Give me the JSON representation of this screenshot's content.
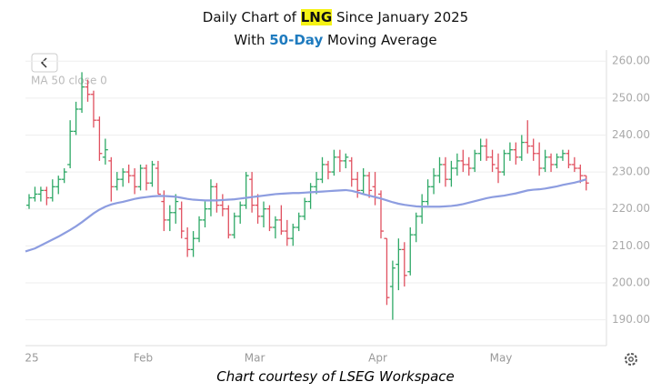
{
  "chart_data": {
    "type": "ohlc",
    "title": [
      "Daily Chart of",
      "LNG",
      "Since January 2025"
    ],
    "subtitle": [
      "With",
      "50-Day",
      "Moving Average"
    ],
    "source": "Chart courtesy of LSEG Workspace",
    "categories": [
      "25",
      null,
      null,
      null,
      null,
      null,
      null,
      null,
      null,
      null,
      null,
      null,
      null,
      null,
      null,
      null,
      null,
      null,
      null,
      "Feb",
      null,
      null,
      null,
      null,
      null,
      null,
      null,
      null,
      null,
      null,
      null,
      null,
      null,
      null,
      null,
      null,
      null,
      null,
      "Mar",
      null,
      null,
      null,
      null,
      null,
      null,
      null,
      null,
      null,
      null,
      null,
      null,
      null,
      null,
      null,
      null,
      null,
      null,
      null,
      null,
      "Apr",
      null,
      null,
      null,
      null,
      null,
      null,
      null,
      null,
      null,
      null,
      null,
      null,
      null,
      null,
      null,
      null,
      null,
      null,
      null,
      null,
      "May",
      null,
      null,
      null,
      null,
      null,
      null,
      null,
      null,
      null,
      null,
      null,
      null,
      null,
      null,
      null
    ],
    "open": [
      221,
      223,
      224,
      225,
      223,
      226,
      228,
      232,
      241,
      247,
      253,
      251,
      244,
      234,
      233,
      226,
      228,
      230,
      229,
      226,
      231,
      227,
      231,
      222,
      217,
      219,
      220,
      212,
      209,
      212,
      217,
      220,
      226,
      221,
      220,
      213,
      218,
      221,
      228,
      221,
      218,
      220,
      215,
      217,
      214,
      212,
      215,
      218,
      222,
      226,
      228,
      232,
      230,
      234,
      233,
      233,
      228,
      225,
      229,
      226,
      224,
      212,
      199,
      205,
      209,
      203,
      213,
      218,
      222,
      226,
      229,
      232,
      228,
      231,
      233,
      232,
      231,
      235,
      237,
      234,
      231,
      230,
      235,
      236,
      234,
      238,
      237,
      235,
      231,
      234,
      232,
      234,
      235,
      232,
      231,
      229
    ],
    "high": [
      224,
      226,
      226,
      226,
      228,
      229,
      231,
      244,
      249,
      257,
      255,
      252,
      245,
      239,
      234,
      230,
      231,
      232,
      231,
      232,
      232,
      233,
      233,
      225,
      221,
      224,
      222,
      215,
      214,
      218,
      222,
      228,
      227,
      224,
      221,
      219,
      222,
      230,
      230,
      224,
      222,
      221,
      218,
      221,
      217,
      216,
      219,
      223,
      227,
      230,
      234,
      233,
      236,
      236,
      235,
      234,
      230,
      231,
      230,
      230,
      225,
      212,
      206,
      212,
      211,
      215,
      219,
      224,
      228,
      231,
      234,
      234,
      233,
      235,
      236,
      234,
      236,
      239,
      239,
      236,
      235,
      236,
      238,
      238,
      240,
      244,
      239,
      238,
      236,
      235,
      235,
      236,
      236,
      234,
      232,
      229
    ],
    "low": [
      220,
      222,
      222,
      221,
      222,
      224,
      227,
      231,
      240,
      246,
      249,
      242,
      233,
      232,
      222,
      225,
      226,
      227,
      224,
      225,
      225,
      226,
      224,
      214,
      214,
      216,
      212,
      207,
      207,
      211,
      215,
      218,
      219,
      218,
      212,
      212,
      216,
      220,
      219,
      216,
      215,
      214,
      212,
      213,
      210,
      210,
      214,
      217,
      220,
      224,
      227,
      228,
      229,
      230,
      231,
      226,
      223,
      224,
      223,
      221,
      212,
      194,
      190,
      198,
      199,
      202,
      211,
      216,
      221,
      224,
      227,
      226,
      226,
      229,
      230,
      229,
      230,
      233,
      233,
      230,
      227,
      229,
      233,
      232,
      233,
      235,
      233,
      229,
      230,
      230,
      231,
      233,
      231,
      230,
      227,
      225
    ],
    "close": [
      223,
      224,
      225,
      223,
      226,
      228,
      230,
      241,
      247,
      253,
      251,
      244,
      235,
      236,
      226,
      228,
      230,
      229,
      226,
      231,
      227,
      232,
      224,
      217,
      219,
      222,
      214,
      209,
      212,
      217,
      220,
      226,
      221,
      220,
      213,
      218,
      221,
      229,
      221,
      218,
      220,
      215,
      217,
      214,
      212,
      215,
      218,
      222,
      226,
      228,
      232,
      230,
      234,
      233,
      234,
      228,
      225,
      229,
      225,
      223,
      214,
      196,
      204,
      209,
      202,
      213,
      218,
      222,
      226,
      229,
      232,
      228,
      231,
      233,
      232,
      231,
      235,
      237,
      234,
      232,
      230,
      235,
      236,
      234,
      238,
      237,
      235,
      231,
      234,
      232,
      234,
      235,
      232,
      231,
      229,
      227
    ],
    "up_color": "#2ea866",
    "down_color": "#e0505f",
    "series": [
      {
        "name": "MA 50 close 0",
        "color": "#8d9de0",
        "values": [
          208.5,
          209.3,
          210.1,
          210.9,
          211.7,
          212.5,
          213.4,
          214.3,
          215.3,
          216.4,
          217.6,
          218.8,
          219.8,
          220.6,
          221.2,
          221.6,
          221.9,
          222.3,
          222.7,
          223.0,
          223.2,
          223.4,
          223.5,
          223.5,
          223.4,
          223.3,
          223.0,
          222.7,
          222.5,
          222.4,
          222.3,
          222.3,
          222.3,
          222.4,
          222.5,
          222.6,
          222.8,
          223.0,
          223.2,
          223.4,
          223.6,
          223.8,
          224.0,
          224.1,
          224.2,
          224.3,
          224.3,
          224.4,
          224.5,
          224.6,
          224.7,
          224.8,
          224.9,
          225.0,
          225.1,
          224.9,
          224.5,
          224.0,
          223.6,
          223.2,
          222.8,
          222.3,
          221.8,
          221.4,
          221.1,
          220.9,
          220.7,
          220.6,
          220.6,
          220.6,
          220.6,
          220.7,
          220.8,
          221.0,
          221.3,
          221.7,
          222.1,
          222.5,
          222.9,
          223.2,
          223.4,
          223.6,
          223.9,
          224.2,
          224.6,
          225.0,
          225.2,
          225.3,
          225.5,
          225.8,
          226.1,
          226.5,
          226.8,
          227.1,
          227.5,
          228.0
        ]
      }
    ],
    "ylim": [
      183,
      263
    ],
    "yticks": [
      {
        "value": 190,
        "label": "190.00"
      },
      {
        "value": 200,
        "label": "200.00"
      },
      {
        "value": 210,
        "label": "210.00"
      },
      {
        "value": 220,
        "label": "220.00"
      },
      {
        "value": 230,
        "label": "230.00"
      },
      {
        "value": 240,
        "label": "240.00"
      },
      {
        "value": 250,
        "label": "250.00"
      },
      {
        "value": 260,
        "label": "260.00"
      }
    ],
    "grid": true
  }
}
